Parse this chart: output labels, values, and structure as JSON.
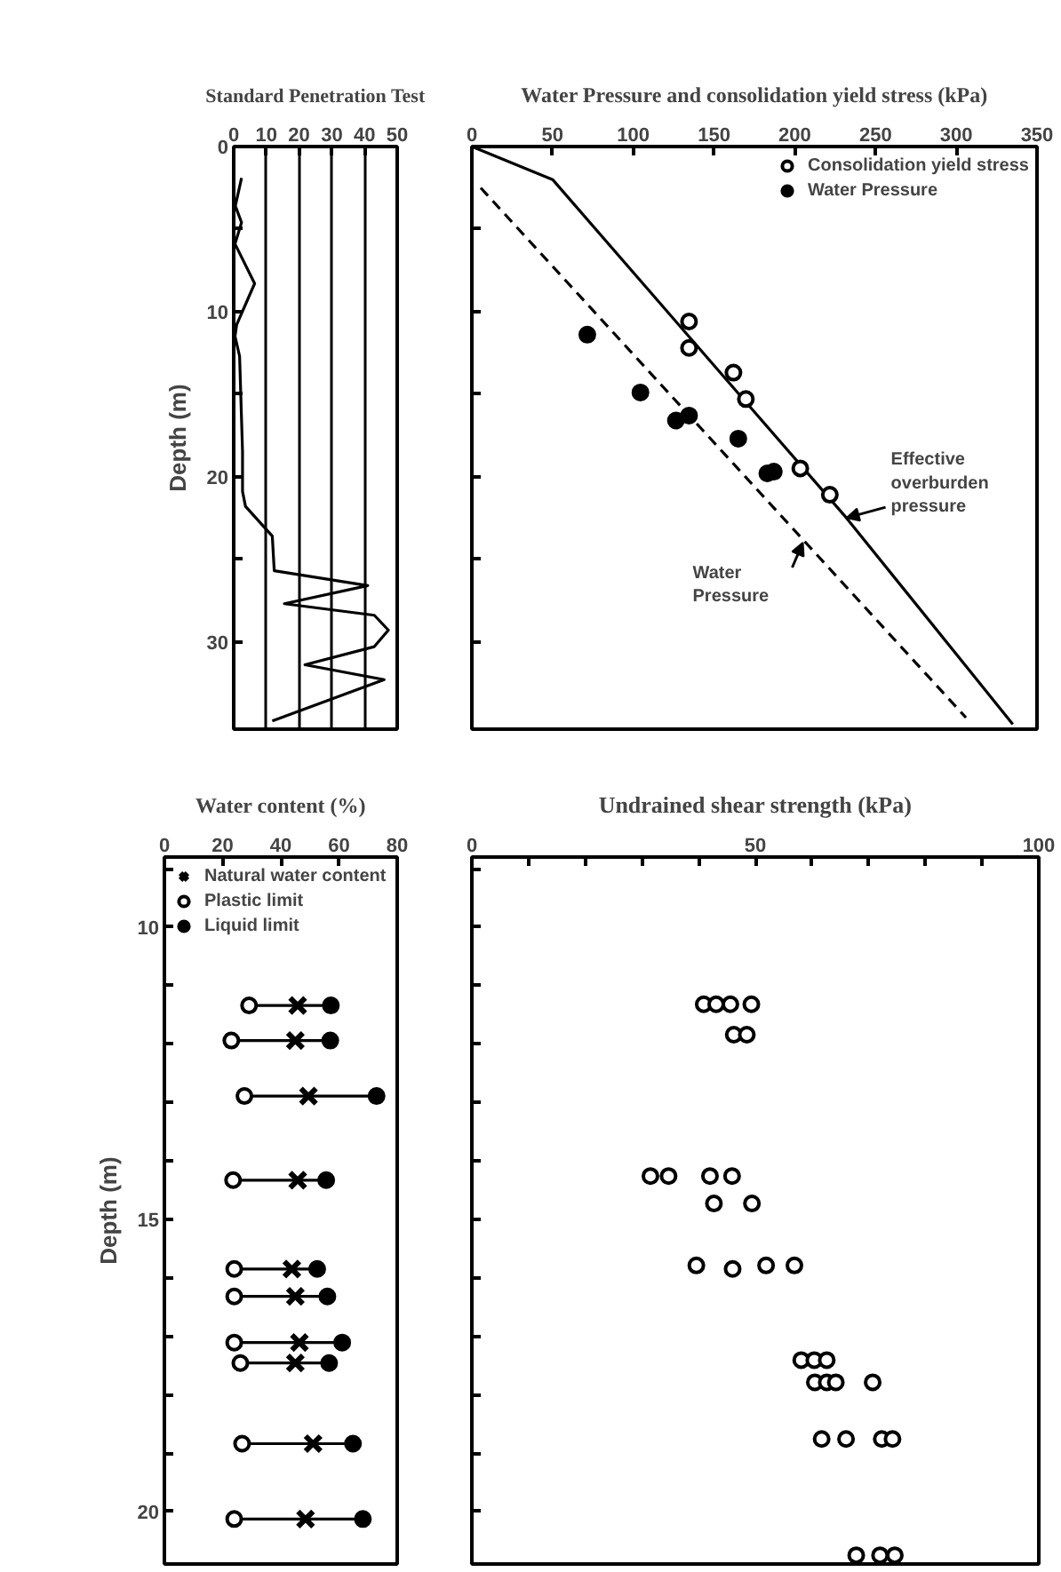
{
  "chart_data": [
    {
      "type": "line",
      "xlabel": "Standard Penetration Test",
      "ylabel": "Depth (m)",
      "xlim": [
        0,
        50
      ],
      "ylim": [
        35.3,
        0
      ],
      "xticks": [
        0,
        10,
        20,
        30,
        40,
        50
      ],
      "yticks": [
        0,
        {
          "value": 5,
          "label": null
        },
        10,
        {
          "value": 15,
          "label": null
        },
        20,
        {
          "value": 25,
          "label": null
        },
        30
      ],
      "grid": "x",
      "series": [
        {
          "color": "#000000",
          "line_style": "solid",
          "x": [
            2.4,
            0.5,
            2.4,
            0.4,
            6.4,
            0.9,
            0.4,
            1.8,
            2.7,
            2.7,
            3.6,
            11.8,
            12.4,
            41,
            15.5,
            43,
            47.3,
            43,
            21.8,
            46,
            11.8
          ],
          "values": [
            1.9,
            3.6,
            4.6,
            5.9,
            8.3,
            10.8,
            11.5,
            12.7,
            18.5,
            20.9,
            21.8,
            23.6,
            25.7,
            26.6,
            27.7,
            28.4,
            29.3,
            30.3,
            31.4,
            32.3,
            34.8
          ]
        }
      ]
    },
    {
      "type": "scatter",
      "xlabel": "Water Pressure and consolidation yield stress (kPa)",
      "xlim": [
        0,
        350
      ],
      "ylim": [
        35.3,
        0
      ],
      "xticks": [
        0,
        50,
        100,
        150,
        200,
        250,
        300,
        350
      ],
      "yticks": [
        5,
        10,
        15,
        20,
        25,
        30
      ],
      "tick_labels": "x",
      "legend": "top right",
      "series": [
        {
          "type": "line",
          "color": "#000000",
          "line_style": "solid",
          "x": [
            0,
            50,
            232,
            335
          ],
          "values": [
            0,
            2,
            22.5,
            35
          ]
        },
        {
          "type": "line",
          "color": "#000000",
          "line_style": "dashed",
          "x": [
            5.5,
            306
          ],
          "values": [
            2.5,
            34.6
          ]
        },
        {
          "name": "Consolidation yield stress",
          "color": "#ffffff",
          "marker": "circle",
          "x": [
            134.5,
            134.5,
            162,
            169.7,
            203.4,
            221.7
          ],
          "values": [
            10.6,
            12.2,
            13.7,
            15.3,
            19.5,
            21.1
          ]
        },
        {
          "name": "Water Pressure",
          "color": "#000000",
          "marker": "circle",
          "x": [
            71.5,
            104.4,
            126.4,
            134.5,
            165,
            183,
            187
          ],
          "values": [
            11.4,
            14.9,
            16.6,
            16.3,
            17.7,
            19.8,
            19.7
          ]
        }
      ],
      "annotations": [
        {
          "text": "Effective overburden pressure",
          "x": 232,
          "y": 22.5
        },
        {
          "text": "Water Pressure",
          "x": 205,
          "y": 24.0
        }
      ]
    },
    {
      "type": "scatter",
      "xlabel": "Water content (%)",
      "ylabel": "Depth (m)",
      "xlim": [
        0,
        80
      ],
      "ylim": [
        20.9,
        8.8
      ],
      "xticks": [
        0,
        20,
        40,
        60,
        80
      ],
      "yticks": [
        {
          "value": 9,
          "label": null
        },
        10,
        {
          "value": 11,
          "label": null
        },
        {
          "value": 12,
          "label": null
        },
        {
          "value": 13,
          "label": null
        },
        {
          "value": 14,
          "label": null
        },
        15,
        {
          "value": 16,
          "label": null
        },
        {
          "value": 17,
          "label": null
        },
        {
          "value": 18,
          "label": null
        },
        {
          "value": 19,
          "label": null
        },
        20
      ],
      "legend": "top left",
      "series": [
        {
          "type": "line",
          "color": "#000000",
          "line_style": "solid",
          "x": [
            29.1,
            57.2,
            null,
            23.0,
            57.0,
            null,
            27.5,
            72.9,
            null,
            23.6,
            55.6,
            null,
            24.0,
            52.5,
            null,
            24.0,
            56.0,
            null,
            24.0,
            61.1,
            null,
            26.1,
            56.6,
            null,
            26.7,
            64.8,
            null,
            24.0,
            68.2
          ],
          "values": [
            11.34,
            11.34,
            null,
            11.94,
            11.94,
            null,
            12.89,
            12.89,
            null,
            14.33,
            14.33,
            null,
            15.85,
            15.85,
            null,
            16.32,
            16.32,
            null,
            17.11,
            17.11,
            null,
            17.46,
            17.46,
            null,
            18.84,
            18.84,
            null,
            20.13,
            20.13
          ]
        },
        {
          "name": "Natural water content",
          "color": "#000000",
          "marker": "cross",
          "x": [
            45.8,
            45.0,
            49.5,
            45.8,
            43.8,
            45.0,
            46.4,
            45.0,
            51.1,
            48.5
          ],
          "values": [
            11.34,
            11.94,
            12.89,
            14.33,
            15.85,
            16.32,
            17.11,
            17.46,
            18.84,
            20.13
          ]
        },
        {
          "name": "Plastic limit",
          "color": "#ffffff",
          "marker": "circle",
          "x": [
            29.1,
            23.0,
            27.5,
            23.6,
            24.0,
            24.0,
            24.0,
            26.1,
            26.7,
            24.0
          ],
          "values": [
            11.34,
            11.94,
            12.89,
            14.33,
            15.85,
            16.32,
            17.11,
            17.46,
            18.84,
            20.13
          ]
        },
        {
          "name": "Liquid limit",
          "color": "#000000",
          "marker": "circle",
          "x": [
            57.2,
            57.0,
            72.9,
            55.6,
            52.5,
            56.0,
            61.1,
            56.6,
            64.8,
            68.2
          ],
          "values": [
            11.34,
            11.94,
            12.89,
            14.33,
            15.85,
            16.32,
            17.11,
            17.46,
            18.84,
            20.13
          ]
        }
      ]
    },
    {
      "type": "scatter",
      "xlabel": "Undrained shear strength (kPa)",
      "xlim": [
        0,
        100
      ],
      "ylim": [
        20.9,
        8.8
      ],
      "xticks": [
        0,
        {
          "value": 10,
          "label": null
        },
        {
          "value": 20,
          "label": null
        },
        {
          "value": 30,
          "label": null
        },
        {
          "value": 40,
          "label": null
        },
        50,
        {
          "value": 60,
          "label": null
        },
        {
          "value": 70,
          "label": null
        },
        {
          "value": 80,
          "label": null
        },
        {
          "value": 90,
          "label": null
        },
        100
      ],
      "yticks": [
        9,
        10,
        11,
        12,
        13,
        14,
        15,
        16,
        17,
        18,
        19,
        20
      ],
      "tick_labels": "x",
      "series": [
        {
          "color": "#ffffff",
          "marker": "circle",
          "x": [
            40.9,
            43.1,
            45.6,
            49.3,
            46.2,
            48.5,
            31.5,
            34.7,
            42.0,
            45.9,
            42.7,
            49.4,
            39.6,
            51.9,
            56.9,
            46.0,
            58.1,
            60.4,
            62.6,
            60.5,
            62.6,
            64.2,
            70.7,
            61.7,
            66.0,
            72.3,
            74.2,
            67.8,
            72.0,
            74.6
          ],
          "values": [
            11.32,
            11.32,
            11.32,
            11.32,
            11.84,
            11.84,
            14.26,
            14.26,
            14.26,
            14.26,
            14.73,
            14.73,
            15.79,
            15.79,
            15.79,
            15.85,
            17.41,
            17.41,
            17.41,
            17.79,
            17.79,
            17.79,
            17.79,
            18.76,
            18.76,
            18.76,
            18.76,
            20.75,
            20.75,
            20.75
          ]
        }
      ]
    }
  ]
}
